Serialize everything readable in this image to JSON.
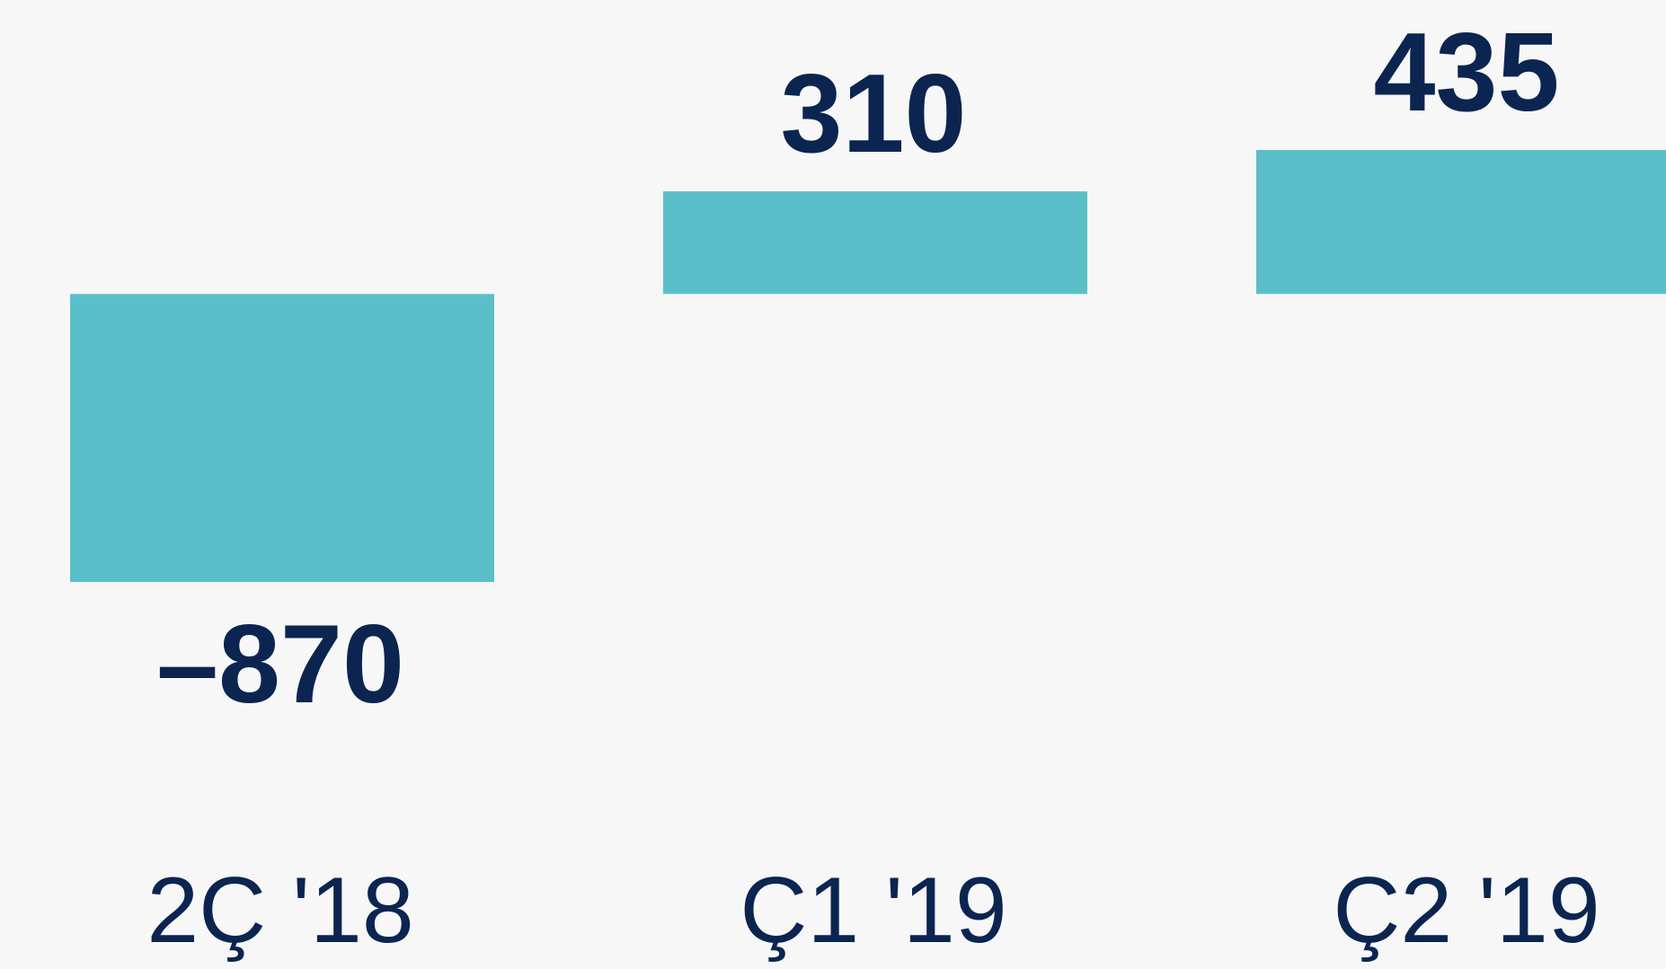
{
  "chart_data": {
    "type": "bar",
    "categories": [
      "2Ç '18",
      "Ç1 '19",
      "Ç2 '19"
    ],
    "values": [
      -870,
      310,
      435
    ],
    "value_labels": [
      "–870",
      "310",
      "435"
    ],
    "color": "#5bbfc9"
  }
}
